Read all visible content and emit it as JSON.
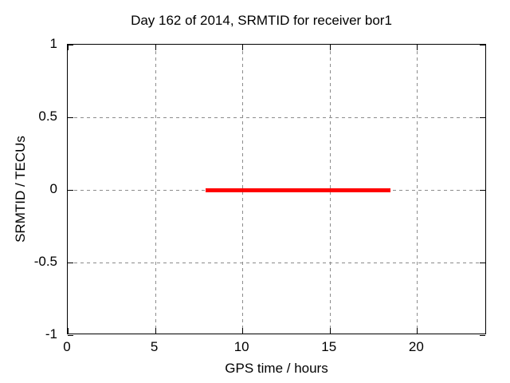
{
  "chart_data": {
    "type": "line",
    "title": "Day 162 of 2014, SRMTID for receiver bor1",
    "xlabel": "GPS time / hours",
    "ylabel": "SRMTID / TECUs",
    "xlim": [
      0,
      24
    ],
    "ylim": [
      -1,
      1
    ],
    "xticks": [
      0,
      5,
      10,
      15,
      20
    ],
    "yticks": [
      1,
      0.5,
      0,
      -0.5,
      -1
    ],
    "grid": true,
    "legend_position": "none",
    "series": [
      {
        "name": "SRMTID",
        "color": "#ff0000",
        "linewidth": 5,
        "x": [
          7.9,
          18.5
        ],
        "y": [
          0,
          0
        ]
      }
    ],
    "colors": {
      "background": "#ffffff",
      "axis": "#000000",
      "grid": "#8c8c8c",
      "text": "#000000"
    }
  }
}
